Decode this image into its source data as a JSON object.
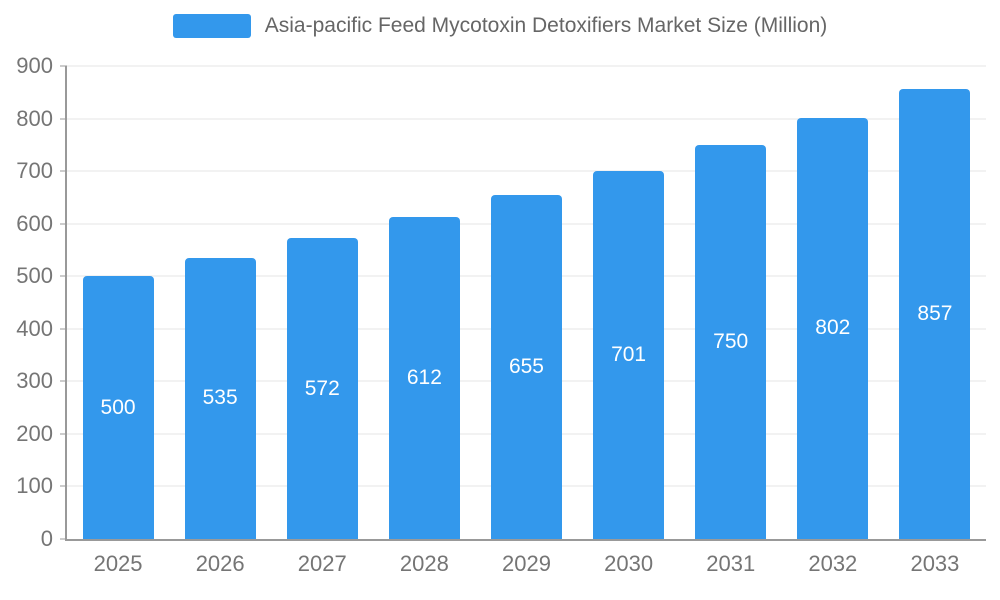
{
  "chart_data": {
    "type": "bar",
    "title": "Asia-pacific Feed Mycotoxin Detoxifiers Market Size (Million)",
    "categories": [
      "2025",
      "2026",
      "2027",
      "2028",
      "2029",
      "2030",
      "2031",
      "2032",
      "2033"
    ],
    "values": [
      500,
      535,
      572,
      612,
      655,
      701,
      750,
      802,
      857
    ],
    "xlabel": "",
    "ylabel": "",
    "ylim": [
      0,
      900
    ],
    "ytick_step": 100,
    "grid": true,
    "legend_position": "top",
    "colors": {
      "bar": "#3398EC",
      "bar_value_label": "#FFFFFF",
      "axis_text": "#757575",
      "legend_text": "#666666",
      "gridline": "#E6E6E6",
      "axis_line": "#999999"
    }
  }
}
